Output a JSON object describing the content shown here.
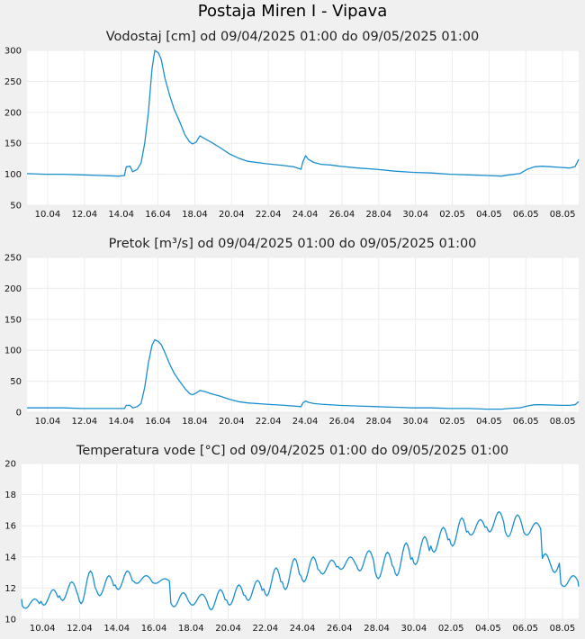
{
  "page_title": "Postaja Miren I - Vipava",
  "chart_data": [
    {
      "type": "line",
      "title": "Vodostaj [cm] od 09/04/2025 01:00 do 09/05/2025 01:00",
      "xlabel": "",
      "ylabel": "",
      "x_range_days": [
        0,
        30
      ],
      "ylim": [
        50,
        300
      ],
      "yticks": [
        50,
        100,
        150,
        200,
        250,
        300
      ],
      "xtick_labels": [
        "10.04",
        "12.04",
        "14.04",
        "16.04",
        "18.04",
        "20.04",
        "22.04",
        "24.04",
        "26.04",
        "28.04",
        "30.04",
        "02.05",
        "04.05",
        "06.05",
        "08.05"
      ],
      "grid": true,
      "series": [
        {
          "color": "#1a8fd0",
          "points": [
            [
              0,
              101
            ],
            [
              1,
              100
            ],
            [
              2,
              100
            ],
            [
              3,
              99
            ],
            [
              4,
              98
            ],
            [
              5,
              97
            ],
            [
              5.3,
              98
            ],
            [
              5.4,
              112
            ],
            [
              5.6,
              113
            ],
            [
              5.75,
              104
            ],
            [
              6.0,
              108
            ],
            [
              6.2,
              118
            ],
            [
              6.4,
              150
            ],
            [
              6.6,
              200
            ],
            [
              6.8,
              270
            ],
            [
              6.95,
              300
            ],
            [
              7.15,
              296
            ],
            [
              7.3,
              285
            ],
            [
              7.5,
              255
            ],
            [
              7.75,
              228
            ],
            [
              8.0,
              205
            ],
            [
              8.3,
              185
            ],
            [
              8.6,
              163
            ],
            [
              8.85,
              152
            ],
            [
              9.0,
              149
            ],
            [
              9.2,
              152
            ],
            [
              9.4,
              162
            ],
            [
              9.7,
              157
            ],
            [
              10.0,
              152
            ],
            [
              10.5,
              143
            ],
            [
              11.0,
              133
            ],
            [
              11.5,
              126
            ],
            [
              12,
              121
            ],
            [
              13,
              117
            ],
            [
              14,
              114
            ],
            [
              14.5,
              112
            ],
            [
              14.9,
              108
            ],
            [
              15.0,
              120
            ],
            [
              15.15,
              130
            ],
            [
              15.3,
              124
            ],
            [
              15.6,
              119
            ],
            [
              16,
              116
            ],
            [
              16.5,
              115
            ],
            [
              17,
              113
            ],
            [
              18,
              110
            ],
            [
              19,
              108
            ],
            [
              20,
              105
            ],
            [
              21,
              103
            ],
            [
              22,
              102
            ],
            [
              23,
              100
            ],
            [
              24,
              99
            ],
            [
              25,
              98
            ],
            [
              25.8,
              97
            ],
            [
              26.2,
              99
            ],
            [
              26.8,
              101
            ],
            [
              27.2,
              108
            ],
            [
              27.6,
              112
            ],
            [
              28,
              113
            ],
            [
              28.5,
              112
            ],
            [
              29,
              111
            ],
            [
              29.5,
              110
            ],
            [
              29.8,
              112
            ],
            [
              30,
              124
            ]
          ]
        }
      ]
    },
    {
      "type": "line",
      "title": "Pretok [m³/s] od 09/04/2025 01:00 do 09/05/2025 01:00",
      "xlabel": "",
      "ylabel": "",
      "x_range_days": [
        0,
        30
      ],
      "ylim": [
        0,
        250
      ],
      "yticks": [
        0,
        50,
        100,
        150,
        200,
        250
      ],
      "xtick_labels": [
        "10.04",
        "12.04",
        "14.04",
        "16.04",
        "18.04",
        "20.04",
        "22.04",
        "24.04",
        "26.04",
        "28.04",
        "30.04",
        "02.05",
        "04.05",
        "06.05",
        "08.05"
      ],
      "grid": true,
      "series": [
        {
          "color": "#1a8fd0",
          "points": [
            [
              0,
              7
            ],
            [
              2,
              7
            ],
            [
              3,
              6
            ],
            [
              5,
              6
            ],
            [
              5.3,
              6
            ],
            [
              5.4,
              11
            ],
            [
              5.6,
              11
            ],
            [
              5.75,
              7
            ],
            [
              6.0,
              9
            ],
            [
              6.2,
              14
            ],
            [
              6.4,
              40
            ],
            [
              6.6,
              80
            ],
            [
              6.8,
              108
            ],
            [
              6.95,
              117
            ],
            [
              7.15,
              114
            ],
            [
              7.3,
              109
            ],
            [
              7.5,
              96
            ],
            [
              7.75,
              78
            ],
            [
              8.0,
              63
            ],
            [
              8.3,
              50
            ],
            [
              8.6,
              38
            ],
            [
              8.85,
              30
            ],
            [
              9.0,
              28
            ],
            [
              9.2,
              31
            ],
            [
              9.4,
              35
            ],
            [
              9.7,
              33
            ],
            [
              10.0,
              30
            ],
            [
              10.5,
              26
            ],
            [
              11.0,
              21
            ],
            [
              11.5,
              17
            ],
            [
              12,
              15
            ],
            [
              13,
              13
            ],
            [
              14,
              11
            ],
            [
              14.9,
              9
            ],
            [
              15.0,
              15
            ],
            [
              15.15,
              18
            ],
            [
              15.3,
              16
            ],
            [
              15.6,
              14
            ],
            [
              16,
              13
            ],
            [
              17,
              11
            ],
            [
              18,
              10
            ],
            [
              19,
              9
            ],
            [
              20,
              8
            ],
            [
              21,
              7
            ],
            [
              22,
              7
            ],
            [
              23,
              6
            ],
            [
              24,
              6
            ],
            [
              25,
              5
            ],
            [
              25.8,
              5
            ],
            [
              26.2,
              6
            ],
            [
              26.8,
              7
            ],
            [
              27.2,
              10
            ],
            [
              27.6,
              12
            ],
            [
              28,
              12
            ],
            [
              29,
              11
            ],
            [
              29.5,
              11
            ],
            [
              29.8,
              12
            ],
            [
              30,
              17
            ]
          ]
        }
      ]
    },
    {
      "type": "line",
      "title": "Temperatura vode [°C] od 09/04/2025 01:00 do 09/05/2025 01:00",
      "xlabel": "",
      "ylabel": "",
      "x_range_days": [
        0,
        30
      ],
      "ylim": [
        10,
        20
      ],
      "yticks": [
        10,
        12,
        14,
        16,
        18,
        20
      ],
      "xtick_labels": [
        "10.04",
        "12.04",
        "14.04",
        "16.04",
        "18.04",
        "20.04",
        "22.04",
        "24.04",
        "26.04",
        "28.04",
        "30.04",
        "02.05",
        "04.05",
        "06.05",
        "08.05"
      ],
      "grid": true,
      "series": [
        {
          "color": "#1a8fd0",
          "daily_min": [
            10.7,
            10.9,
            11.2,
            11.0,
            11.5,
            11.9,
            12.3,
            12.3,
            10.8,
            10.9,
            10.6,
            10.9,
            11.2,
            11.5,
            11.9,
            12.4,
            12.9,
            13.2,
            13.1,
            12.6,
            12.8,
            13.5,
            14.3,
            14.7,
            15.4,
            15.6,
            15.3,
            15.4,
            14.2,
            12.1
          ],
          "daily_max": [
            11.3,
            11.9,
            12.4,
            13.1,
            12.8,
            13.1,
            12.8,
            12.6,
            11.7,
            11.6,
            11.9,
            12.2,
            12.5,
            13.3,
            13.9,
            14.0,
            13.8,
            14.0,
            14.4,
            14.3,
            14.9,
            15.3,
            15.9,
            16.5,
            16.4,
            16.9,
            16.7,
            16.2,
            13.0,
            12.8
          ],
          "start": 11.3,
          "end": 12.1
        }
      ]
    }
  ]
}
